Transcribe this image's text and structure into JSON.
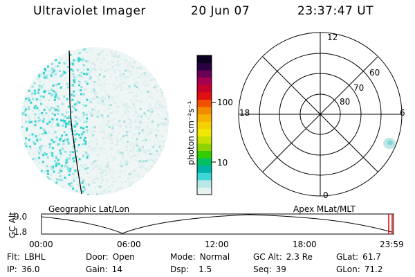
{
  "header": {
    "instrument": "Ultraviolet Imager",
    "date": "20 Jun 07",
    "time": "23:37:47 UT"
  },
  "colorbar": {
    "unit_label": "photon cm⁻²s⁻¹",
    "ticks": [
      "100",
      "10"
    ],
    "scale": "log",
    "colors": [
      "#e6f2f2",
      "#b9e8e8",
      "#3fd6d6",
      "#00b3a6",
      "#00c060",
      "#33cc00",
      "#8fd400",
      "#c8e000",
      "#f0e800",
      "#f4d000",
      "#f6b000",
      "#f28a00",
      "#ee5000",
      "#e01010",
      "#c8002c",
      "#a80050",
      "#6a0056",
      "#2a0040",
      "#0a0020"
    ]
  },
  "left_panel": {
    "label": "Geographic Lat/Lon"
  },
  "right_panel": {
    "label": "Apex MLat/MLT",
    "mlt_labels": [
      "12",
      "18",
      "6",
      "0"
    ],
    "lat_labels": [
      "60",
      "70",
      "80"
    ]
  },
  "timeline": {
    "axis_title": "GC Alt",
    "y_ticks": [
      "9.0",
      "1.8"
    ],
    "x_ticks": [
      "00:00",
      "06:00",
      "12:00",
      "18:00",
      "23:59"
    ],
    "marker_color": "#e00000"
  },
  "status": {
    "filter": {
      "label": "Flt:",
      "value": "LBHL"
    },
    "door": {
      "label": "Door:",
      "value": "Open"
    },
    "mode": {
      "label": "Mode:",
      "value": "Normal"
    },
    "gc_alt": {
      "label": "GC Alt:",
      "value": "2.3 Re"
    },
    "glat": {
      "label": "GLat:",
      "value": "61.7"
    },
    "ip": {
      "label": "IP:",
      "value": "36.0"
    },
    "gain": {
      "label": "Gain:",
      "value": "14"
    },
    "dsp": {
      "label": "Dsp:",
      "value": "1.5"
    },
    "seq": {
      "label": "Seq:",
      "value": "39"
    },
    "glon": {
      "label": "GLon:",
      "value": "71.2"
    }
  }
}
